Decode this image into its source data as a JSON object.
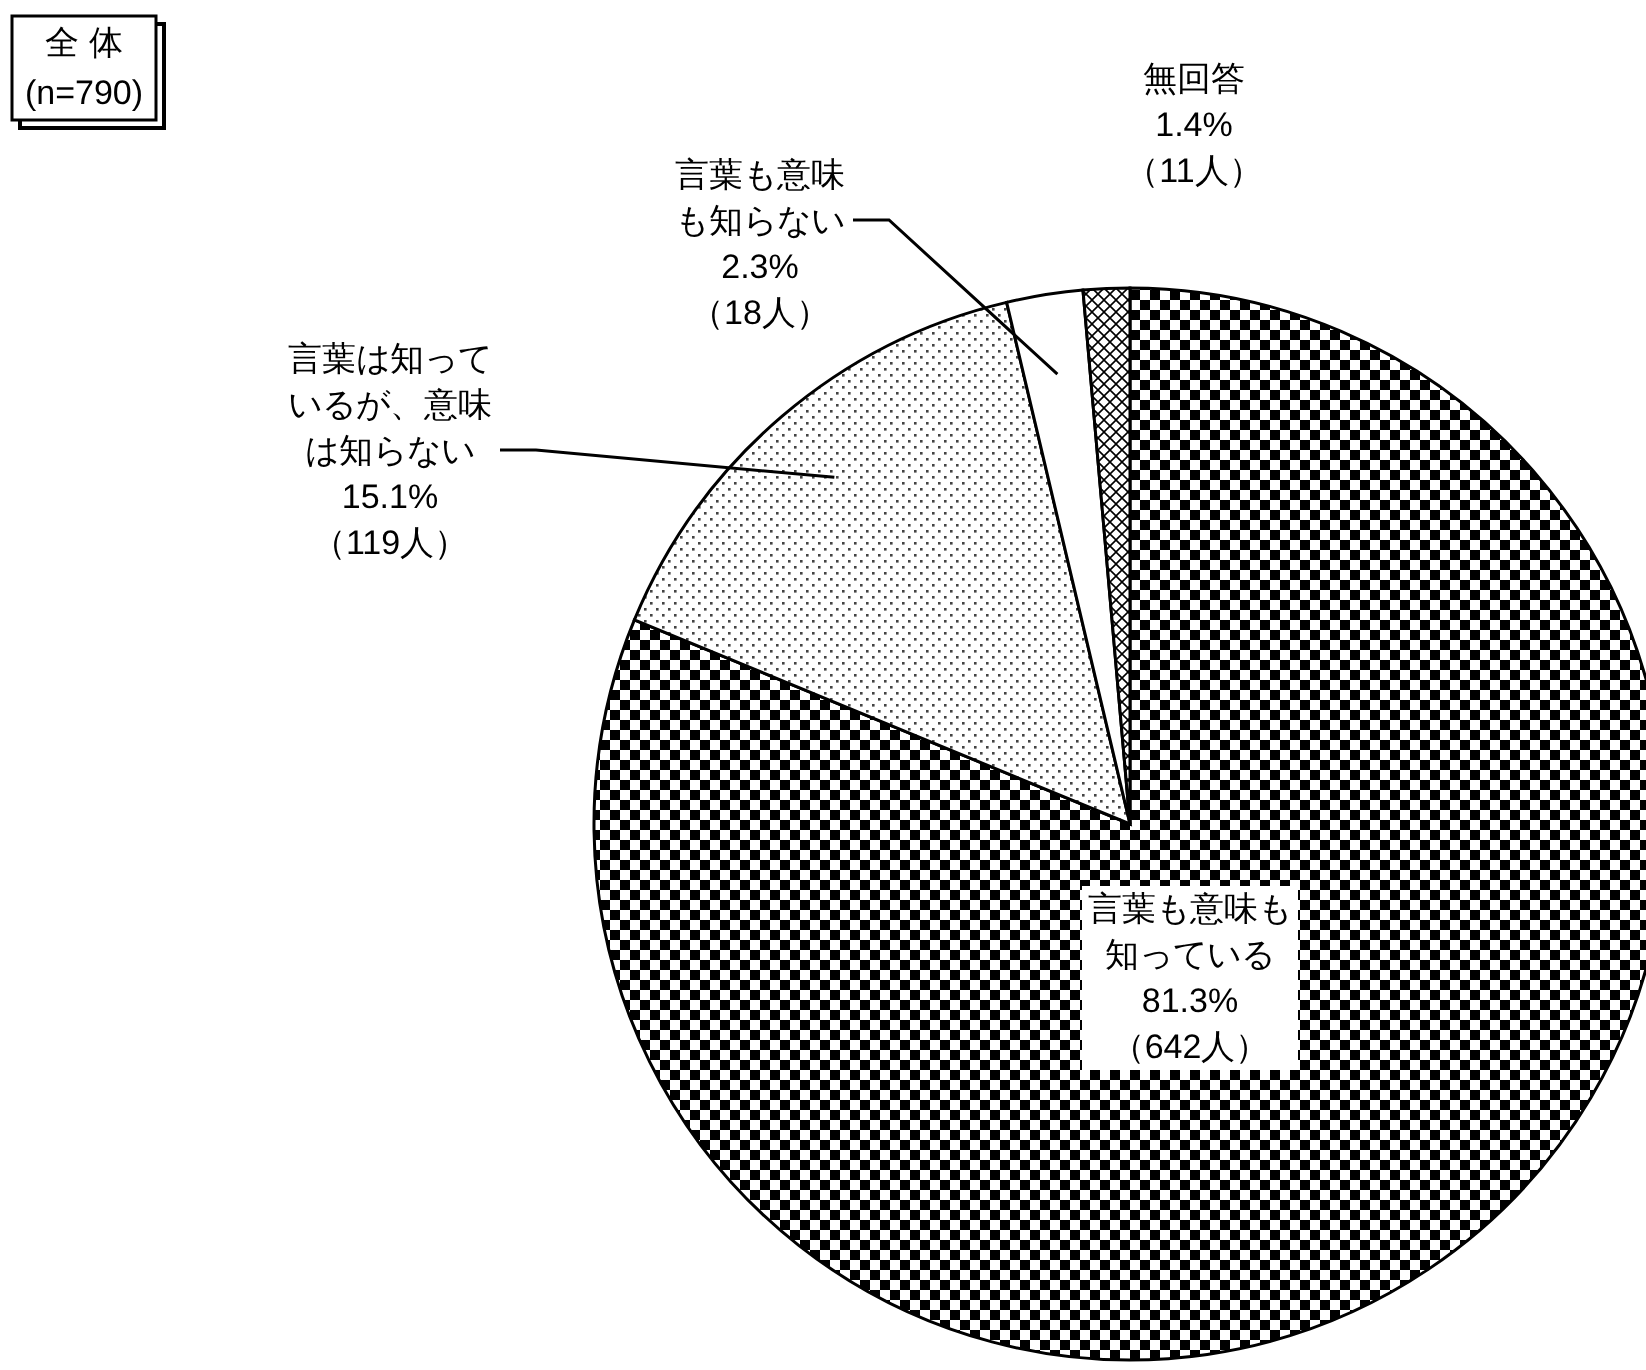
{
  "chart_data": {
    "type": "pie",
    "title": "全 体",
    "subtitle": "(n=790)",
    "categories": [
      "言葉も意味も知っている",
      "言葉は知っているが、意味は知らない",
      "言葉も意味も知らない",
      "無回答"
    ],
    "values": [
      81.3,
      15.1,
      2.3,
      1.4
    ],
    "value_labels": [
      "81.3%\n（642人）",
      "15.1%\n（119人）",
      "2.3%\n（18人）",
      "1.4%\n（11人）"
    ],
    "legend": false
  }
}
